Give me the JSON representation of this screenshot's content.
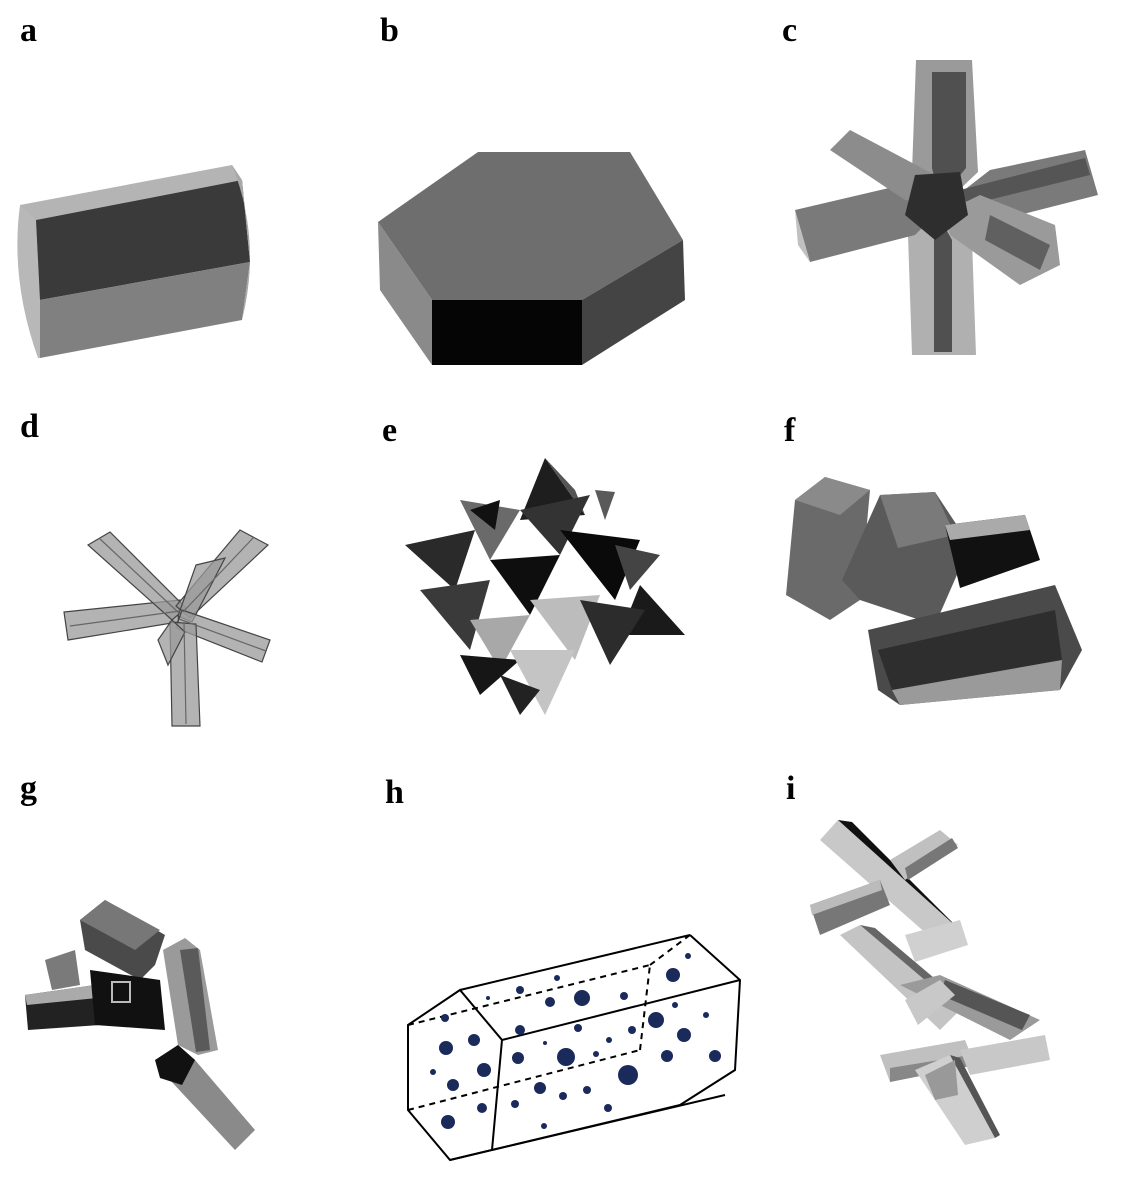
{
  "panels": [
    {
      "label": "a",
      "shape": "hexagonal-column"
    },
    {
      "label": "b",
      "shape": "hexagonal-plate"
    },
    {
      "label": "c",
      "shape": "column-bullet-rosette"
    },
    {
      "label": "d",
      "shape": "wireframe-bullet-rosette"
    },
    {
      "label": "e",
      "shape": "droxtal-spiky-aggregate"
    },
    {
      "label": "f",
      "shape": "column-aggregate"
    },
    {
      "label": "g",
      "shape": "loose-column-aggregate"
    },
    {
      "label": "h",
      "shape": "column-with-air-bubbles"
    },
    {
      "label": "i",
      "shape": "rosette-aggregate"
    }
  ],
  "colors": {
    "light": "#b4b4b4",
    "mid": "#7a7a7a",
    "dark": "#3a3a3a",
    "black": "#0a0a0a",
    "bubble": "#1a2a5a",
    "outline": "#000000"
  }
}
